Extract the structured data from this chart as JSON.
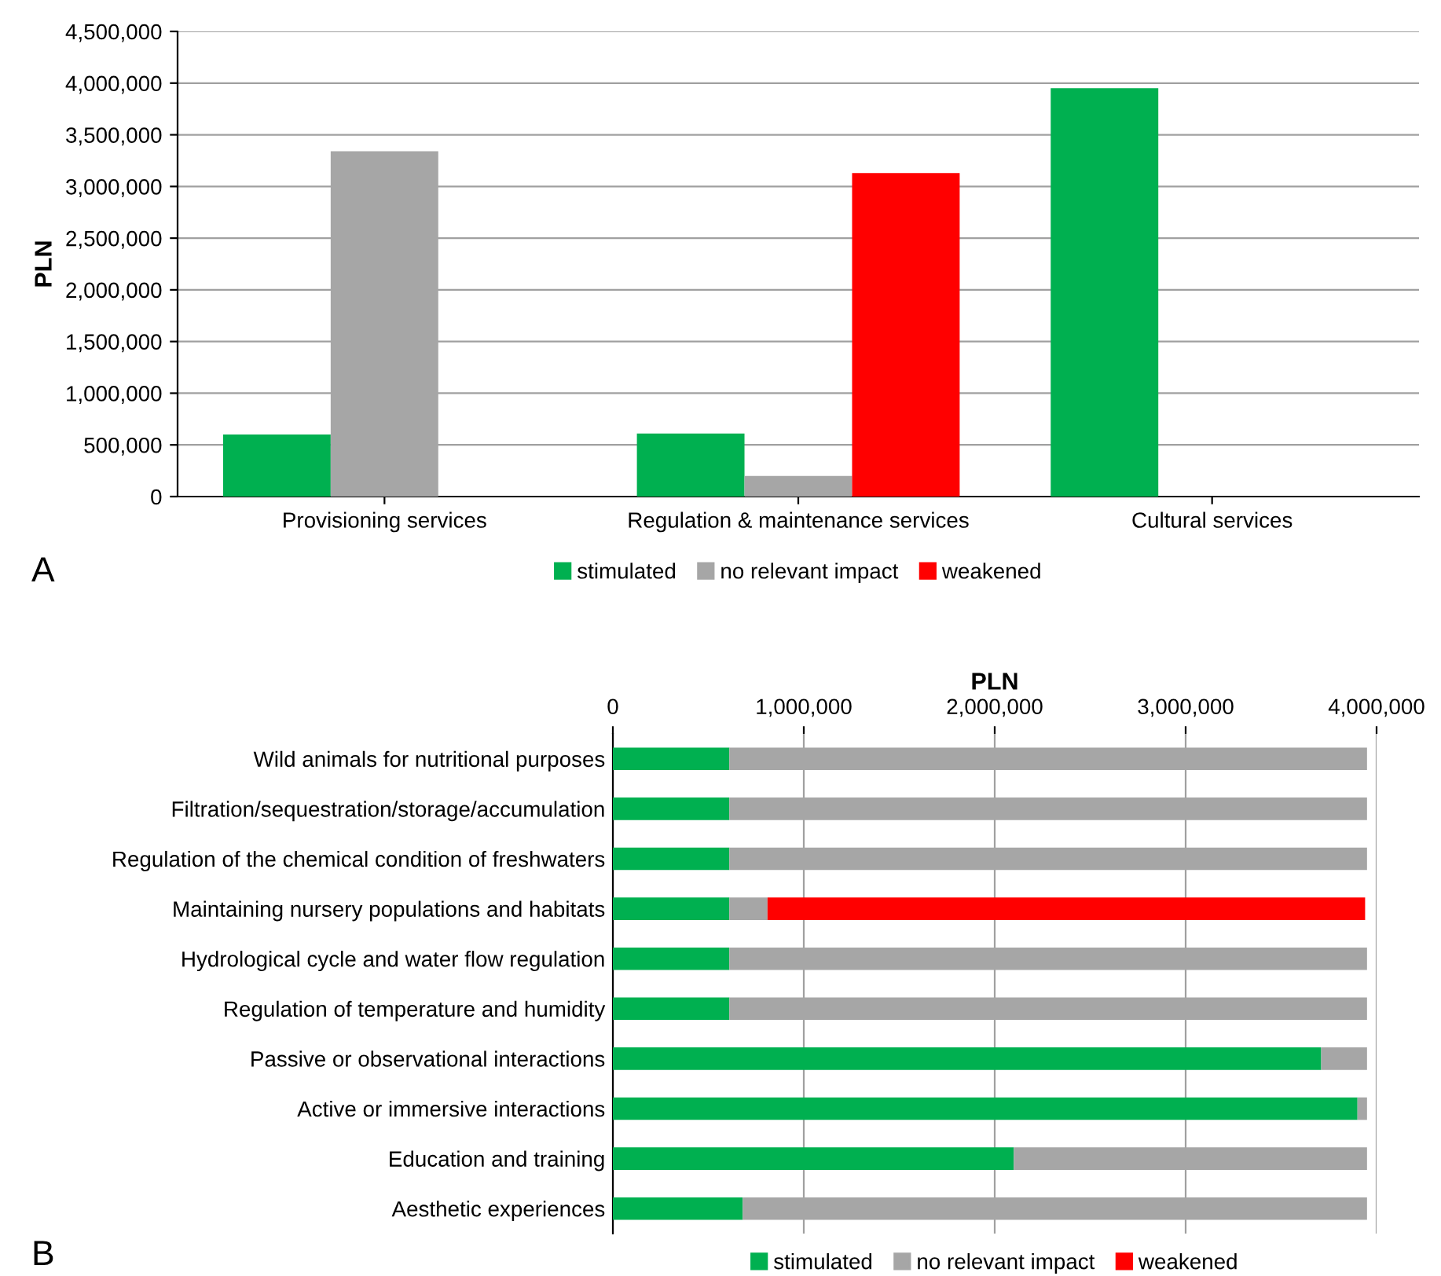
{
  "chart_data": [
    {
      "type": "bar",
      "ylabel": "PLN",
      "categories": [
        "Provisioning services",
        "Regulation & maintenance services",
        "Cultural services"
      ],
      "series": [
        {
          "name": "stimulated",
          "color": "#00b050",
          "values": [
            600000,
            610000,
            3950000
          ]
        },
        {
          "name": "no relevant impact",
          "color": "#a6a6a6",
          "values": [
            3340000,
            200000,
            null
          ]
        },
        {
          "name": "weakened",
          "color": "#ff0000",
          "values": [
            null,
            3130000,
            null
          ]
        }
      ],
      "ylim": [
        0,
        4500000
      ],
      "yticks": [
        {
          "value": 0,
          "label": "0"
        },
        {
          "value": 500000,
          "label": "500,000"
        },
        {
          "value": 1000000,
          "label": "1,000,000"
        },
        {
          "value": 1500000,
          "label": "1,500,000"
        },
        {
          "value": 2000000,
          "label": "2,000,000"
        },
        {
          "value": 2500000,
          "label": "2,500,000"
        },
        {
          "value": 3000000,
          "label": "3,000,000"
        },
        {
          "value": 3500000,
          "label": "3,500,000"
        },
        {
          "value": 4000000,
          "label": "4,000,000"
        },
        {
          "value": 4500000,
          "label": "4,500,000"
        }
      ],
      "grid": "y",
      "legend": "bottom",
      "annotations": [
        "A"
      ]
    },
    {
      "type": "bar",
      "orientation": "horizontal",
      "stacked": true,
      "xlabel": "PLN",
      "categories": [
        "Wild animals for nutritional purposes",
        "Filtration/sequestration/storage/accumulation",
        "Regulation of the chemical condition of freshwaters",
        "Maintaining nursery populations and habitats",
        "Hydrological cycle and water flow regulation",
        "Regulation of temperature and humidity",
        "Passive or observational interactions",
        "Active or immersive interactions",
        "Education and training",
        "Aesthetic experiences"
      ],
      "series": [
        {
          "name": "stimulated",
          "color": "#00b050",
          "values": [
            610000,
            610000,
            610000,
            610000,
            610000,
            610000,
            3710000,
            3900000,
            2100000,
            680000
          ]
        },
        {
          "name": "no relevant impact",
          "color": "#a6a6a6",
          "values": [
            3340000,
            3340000,
            3340000,
            200000,
            3340000,
            3340000,
            240000,
            50000,
            1850000,
            3270000
          ]
        },
        {
          "name": "weakened",
          "color": "#ff0000",
          "values": [
            0,
            0,
            0,
            3130000,
            0,
            0,
            0,
            0,
            0,
            0
          ]
        }
      ],
      "xlim": [
        0,
        4000000
      ],
      "xticks": [
        {
          "value": 0,
          "label": "0"
        },
        {
          "value": 1000000,
          "label": "1,000,000"
        },
        {
          "value": 2000000,
          "label": "2,000,000"
        },
        {
          "value": 3000000,
          "label": "3,000,000"
        },
        {
          "value": 4000000,
          "label": "4,000,000"
        }
      ],
      "grid": "x",
      "legend": "bottom",
      "annotations": [
        "B"
      ]
    }
  ]
}
